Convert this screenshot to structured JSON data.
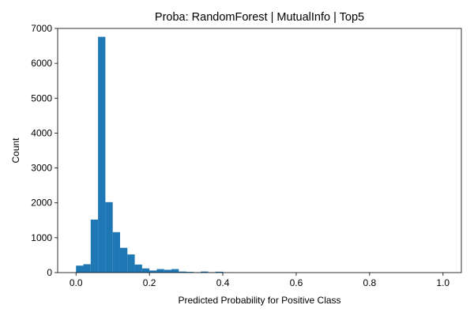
{
  "chart_data": {
    "type": "bar",
    "title": "Proba: RandomForest | MutualInfo | Top5",
    "xlabel": "Predicted Probability for Positive Class",
    "ylabel": "Count",
    "xlim": [
      -0.05,
      1.05
    ],
    "ylim": [
      0,
      7000
    ],
    "xticks": [
      0.0,
      0.2,
      0.4,
      0.6,
      0.8,
      1.0
    ],
    "xtick_labels": [
      "0.0",
      "0.2",
      "0.4",
      "0.6",
      "0.8",
      "1.0"
    ],
    "yticks": [
      0,
      1000,
      2000,
      3000,
      4000,
      5000,
      6000,
      7000
    ],
    "ytick_labels": [
      "0",
      "1000",
      "2000",
      "3000",
      "4000",
      "5000",
      "6000",
      "7000"
    ],
    "grid": false,
    "bar_color": "#1f77b4",
    "bins": [
      0.0,
      0.02,
      0.04,
      0.06,
      0.08,
      0.1,
      0.12,
      0.14,
      0.16,
      0.18,
      0.2,
      0.22,
      0.24,
      0.26,
      0.28,
      0.3,
      0.32,
      0.34,
      0.36,
      0.38,
      0.4,
      0.42,
      0.44,
      0.46,
      0.48,
      0.5,
      0.52,
      0.54,
      0.56,
      0.58,
      0.6,
      0.62,
      0.64,
      0.66,
      0.68,
      0.7,
      0.72,
      0.74,
      0.76,
      0.78,
      0.8,
      0.82,
      0.84,
      0.86,
      0.88,
      0.9,
      0.92,
      0.94,
      0.96,
      0.98,
      1.0
    ],
    "counts": [
      200,
      240,
      1520,
      6760,
      2020,
      1160,
      710,
      520,
      230,
      120,
      60,
      100,
      80,
      100,
      30,
      20,
      10,
      30,
      10,
      25,
      5,
      0,
      0,
      0,
      0,
      0,
      0,
      0,
      0,
      0,
      0,
      0,
      0,
      0,
      0,
      0,
      0,
      0,
      0,
      0,
      0,
      0,
      0,
      0,
      0,
      0,
      0,
      0,
      0,
      0
    ]
  }
}
